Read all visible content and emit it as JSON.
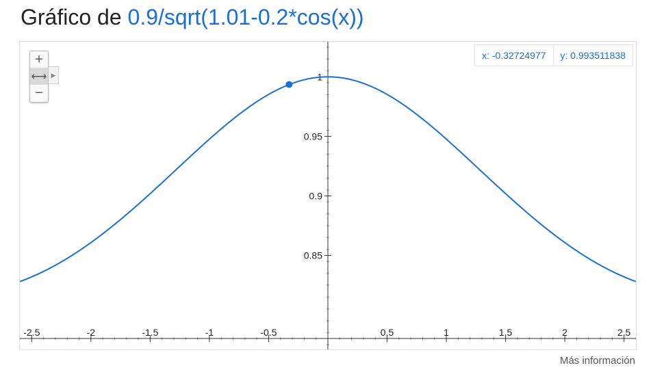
{
  "title": {
    "prefix": "Gráfico de",
    "function": "0.9/sqrt(1.01-0.2*cos(x))"
  },
  "readout": {
    "x_label": "x: -0.32724977",
    "y_label": "y: 0.993511838"
  },
  "zoom": {
    "in_icon": "plus-icon",
    "fit_icon": "horizontal-arrows-icon",
    "out_icon": "minus-icon",
    "expand_icon": "triangle-right-icon"
  },
  "more_info": "Más información",
  "colors": {
    "curve": "#1a6fd6",
    "axis": "#333333",
    "tick_text": "#222222"
  },
  "chart_data": {
    "type": "line",
    "function": "0.9/sqrt(1.01-0.2*cos(x))",
    "xlim": [
      -2.6,
      2.6
    ],
    "ylim": [
      0.771,
      1.0295
    ],
    "x_ticks": [
      -2.5,
      -2,
      -1.5,
      -1,
      -0.5,
      0.5,
      1,
      1.5,
      2,
      2.5
    ],
    "x_tick_labels": [
      "-2.5",
      "-2",
      "-1.5",
      "-1",
      "-0.5",
      "0.5",
      "1",
      "1.5",
      "2",
      "2.5"
    ],
    "y_ticks": [
      0.85,
      0.9,
      0.95,
      1
    ],
    "y_tick_labels": [
      "0.85",
      "0.9",
      "0.95",
      "1"
    ],
    "highlight_point": {
      "x": -0.32724977,
      "y": 0.993511838
    },
    "grid": false
  }
}
